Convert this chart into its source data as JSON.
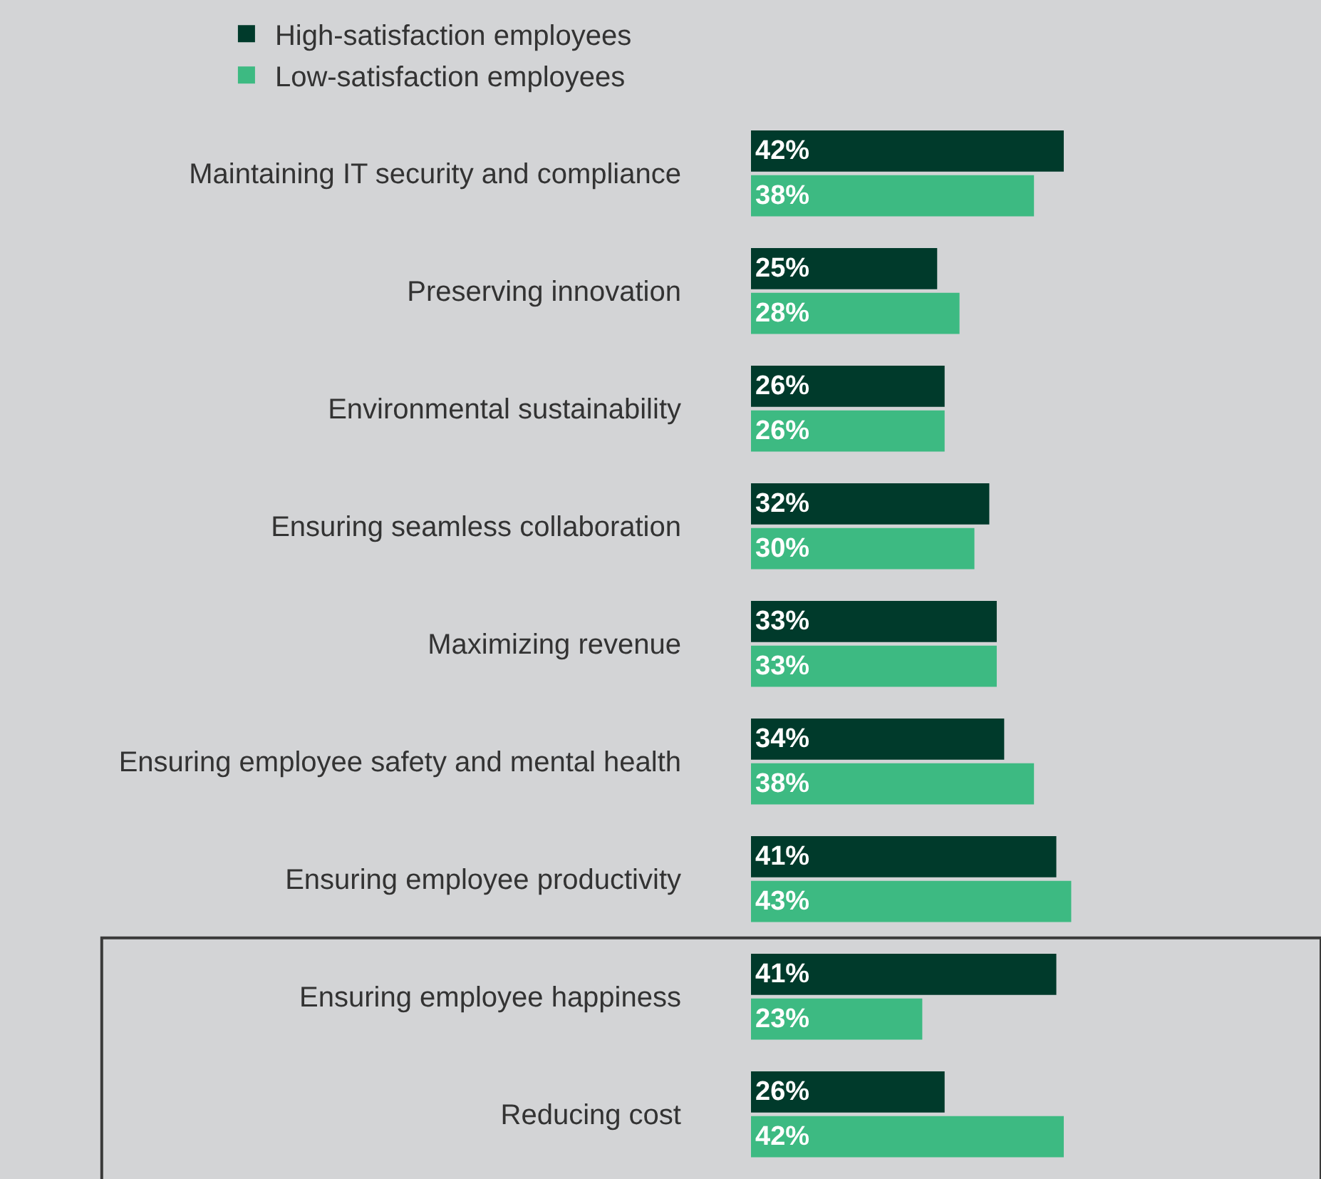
{
  "chart_data": {
    "type": "bar",
    "orientation": "horizontal",
    "legend": "top",
    "categories": [
      "Maintaining IT security and compliance",
      "Preserving innovation",
      "Environmental sustainability",
      "Ensuring seamless collaboration",
      "Maximizing revenue",
      "Ensuring employee safety and mental health",
      "Ensuring employee productivity",
      "Ensuring employee happiness",
      "Reducing cost"
    ],
    "series": [
      {
        "name": "High-satisfaction employees",
        "color": "#003a2b",
        "values": [
          42,
          25,
          26,
          32,
          33,
          34,
          41,
          41,
          26
        ],
        "value_labels": [
          "42%",
          "25%",
          "26%",
          "32%",
          "33%",
          "34%",
          "41%",
          "41%",
          "26%"
        ]
      },
      {
        "name": "Low-satisfaction employees",
        "color": "#3dba82",
        "values": [
          38,
          28,
          26,
          30,
          33,
          38,
          43,
          23,
          42
        ],
        "value_labels": [
          "38%",
          "28%",
          "26%",
          "30%",
          "33%",
          "38%",
          "43%",
          "23%",
          "42%"
        ]
      }
    ]
  }
}
